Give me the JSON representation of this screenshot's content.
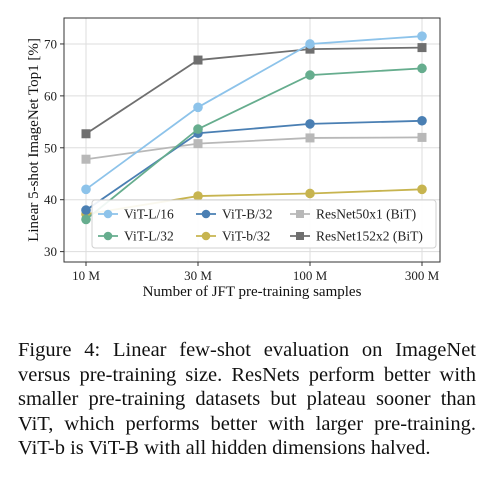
{
  "chart_data": {
    "type": "line",
    "xlabel": "Number of JFT pre-training samples",
    "ylabel": "Linear 5-shot ImageNet Top1 [%]",
    "categories": [
      "10 M",
      "30 M",
      "100 M",
      "300 M"
    ],
    "ylim": [
      28,
      75
    ],
    "yticks": [
      30,
      40,
      50,
      60,
      70
    ],
    "grid": true,
    "legend_position": "lower-right",
    "series": [
      {
        "name": "ViT-L/16",
        "color": "#8dc3ea",
        "marker": "circle",
        "values": [
          42.0,
          57.8,
          70.0,
          71.5
        ]
      },
      {
        "name": "ViT-L/32",
        "color": "#66ad8e",
        "marker": "circle",
        "values": [
          36.2,
          53.6,
          64.0,
          65.3
        ]
      },
      {
        "name": "ViT-B/32",
        "color": "#4a7fb3",
        "marker": "circle",
        "values": [
          38.0,
          52.8,
          54.6,
          55.2
        ]
      },
      {
        "name": "ViT-b/32",
        "color": "#c7b44f",
        "marker": "circle",
        "values": [
          37.2,
          40.7,
          41.2,
          42.0
        ]
      },
      {
        "name": "ResNet50x1 (BiT)",
        "color": "#b8b8b8",
        "marker": "square",
        "values": [
          47.8,
          50.8,
          51.9,
          52.0
        ]
      },
      {
        "name": "ResNet152x2 (BiT)",
        "color": "#6f6f6f",
        "marker": "square",
        "values": [
          52.7,
          66.9,
          69.0,
          69.3
        ]
      }
    ]
  },
  "caption": "Figure 4: Linear few-shot evaluation on ImageNet versus pre-training size. ResNets perform better with smaller pre-training datasets but plateau sooner than ViT, which performs better with larger pre-training. ViT-b is ViT-B with all hidden dimensions halved."
}
